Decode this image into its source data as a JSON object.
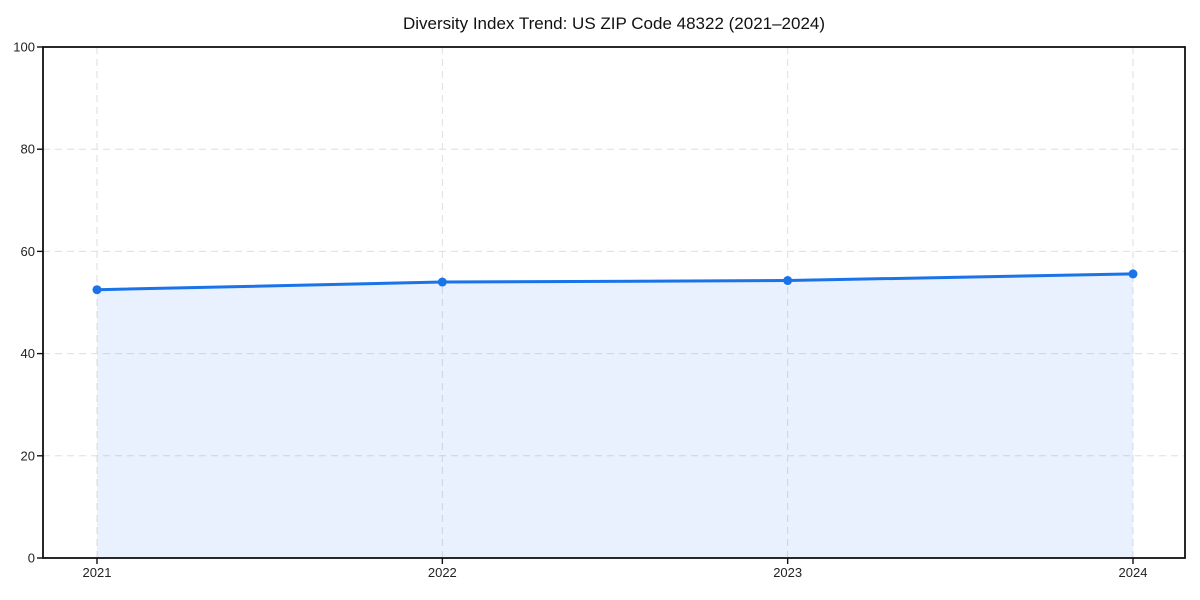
{
  "chart_data": {
    "type": "area",
    "title": "Diversity Index Trend: US ZIP Code 48322 (2021–2024)",
    "categories": [
      "2021",
      "2022",
      "2023",
      "2024"
    ],
    "series": [
      {
        "name": "Diversity Index",
        "values": [
          52.5,
          54.0,
          54.3,
          55.6
        ]
      }
    ],
    "xlabel": "",
    "ylabel": "",
    "ylim": [
      0,
      100
    ],
    "yticks": [
      0,
      20,
      40,
      60,
      80,
      100
    ],
    "xtick_labels": [
      "2021",
      "2022",
      "2023",
      "2024"
    ],
    "grid": true,
    "grid_style": "dashed",
    "legend_position": "none",
    "marker": "circle",
    "colors": {
      "line": "#1a73e8",
      "marker": "#1a73e8",
      "fill": "#1a73e8",
      "fill_opacity": 0.1,
      "grid": "#dedede",
      "spine": "#111111",
      "tick_label": "#222222",
      "title": "#111111",
      "background": "#ffffff"
    }
  }
}
